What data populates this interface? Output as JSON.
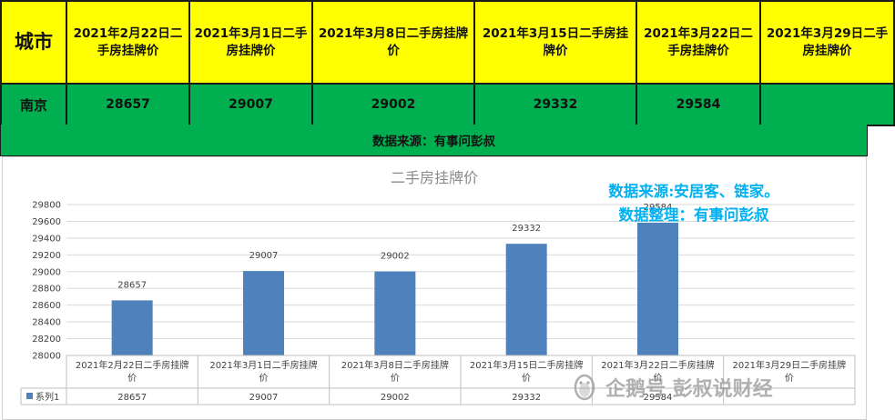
{
  "table": {
    "city_header": "城市",
    "headers": [
      "2021年2月22日二手房挂牌价",
      "2021年3月1日二手房挂牌价",
      "2021年3月8日二手房挂牌价",
      "2021年3月15日二手房挂牌价",
      "2021年3月22日二手房挂牌价",
      "2021年3月29日二手房挂牌价"
    ],
    "city": "南京",
    "values": [
      "28657",
      "29007",
      "29002",
      "29332",
      "29584",
      ""
    ]
  },
  "source_line": "数据来源：有事问彭叔",
  "overlay": {
    "line1": "数据来源:安居客、链家。",
    "line2": "数据整理：有事问彭叔"
  },
  "watermark": "企鹅号 彭叔说财经",
  "colors": {
    "header_bg": "#ffff00",
    "row_bg": "#00b050",
    "bar": "#4f81bd",
    "overlay_text": "#00b0f0"
  },
  "chart_data": {
    "type": "bar",
    "title": "二手房挂牌价",
    "categories": [
      "2021年2月22日二手房挂牌价",
      "2021年3月1日二手房挂牌价",
      "2021年3月8日二手房挂牌价",
      "2021年3月15日二手房挂牌价",
      "2021年3月22日二手房挂牌价",
      "2021年3月29日二手房挂牌价"
    ],
    "series": [
      {
        "name": "系列1",
        "values": [
          28657,
          29007,
          29002,
          29332,
          29584,
          null
        ]
      }
    ],
    "ylim": [
      28000,
      29800
    ],
    "yticks": [
      28000,
      28200,
      28400,
      28600,
      28800,
      29000,
      29200,
      29400,
      29600,
      29800
    ],
    "grid": true,
    "data_table": true,
    "legend": "data-table"
  }
}
